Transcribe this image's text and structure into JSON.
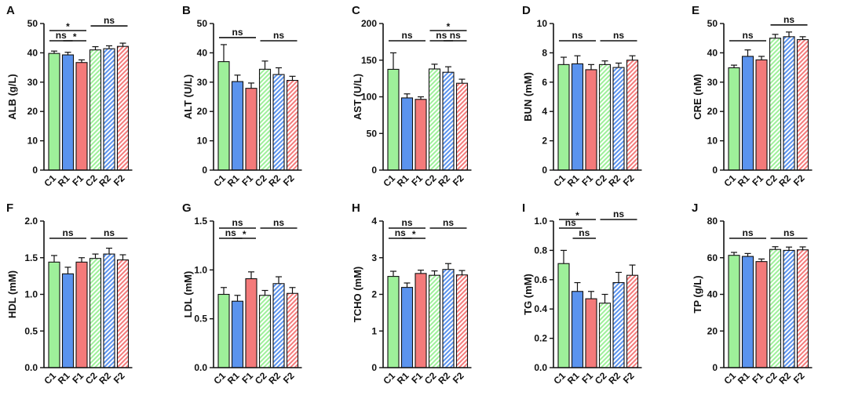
{
  "figure": {
    "colors": {
      "green": "#9EF09A",
      "blue": "#5B93EE",
      "red": "#F47A7A",
      "axis": "#111111"
    },
    "panels": [
      {
        "letter": "A",
        "ylabel": "ALB (g/L)",
        "yticks": [
          "0",
          "10",
          "20",
          "30",
          "40",
          "50"
        ]
      },
      {
        "letter": "B",
        "ylabel": "ALT (U/L)",
        "yticks": [
          "0",
          "10",
          "20",
          "30",
          "40",
          "50"
        ]
      },
      {
        "letter": "C",
        "ylabel": "AST (U/L)",
        "yticks": [
          "0",
          "50",
          "100",
          "150",
          "200"
        ]
      },
      {
        "letter": "D",
        "ylabel": "BUN (mM)",
        "yticks": [
          "0",
          "2",
          "4",
          "6",
          "8",
          "10"
        ]
      },
      {
        "letter": "E",
        "ylabel": "CRE (nM)",
        "yticks": [
          "0",
          "10",
          "20",
          "30",
          "40",
          "50"
        ]
      },
      {
        "letter": "F",
        "ylabel": "HDL (mM)",
        "yticks": [
          "0.0",
          "0.5",
          "1.0",
          "1.5",
          "2.0"
        ]
      },
      {
        "letter": "G",
        "ylabel": "LDL (mM)",
        "yticks": [
          "0.0",
          "0.5",
          "1.0",
          "1.5"
        ]
      },
      {
        "letter": "H",
        "ylabel": "TCHO (mM)",
        "yticks": [
          "0",
          "1",
          "2",
          "3",
          "4"
        ]
      },
      {
        "letter": "I",
        "ylabel": "TG (mM)",
        "yticks": [
          "0.0",
          "0.2",
          "0.4",
          "0.6",
          "0.8",
          "1.0"
        ]
      },
      {
        "letter": "J",
        "ylabel": "TP (g/L)",
        "yticks": [
          "0",
          "20",
          "40",
          "60",
          "80"
        ]
      }
    ]
  },
  "chart_data": [
    {
      "type": "bar",
      "panel": "A",
      "ylabel": "ALB (g/L)",
      "ylim": [
        0,
        50
      ],
      "categories": [
        "C1",
        "R1",
        "F1",
        "C2",
        "R2",
        "F2"
      ],
      "values": [
        39.8,
        39.3,
        36.7,
        41.0,
        41.4,
        42.2
      ],
      "errors": [
        0.8,
        0.9,
        0.9,
        1.1,
        1.0,
        1.1
      ],
      "comparisons": [
        {
          "from": 0,
          "to": 1,
          "label": "ns",
          "level": 0
        },
        {
          "from": 1,
          "to": 2,
          "label": "*",
          "level": 0
        },
        {
          "from": 0,
          "to": 2,
          "label": "*",
          "level": 1
        },
        {
          "from": 3,
          "to": 5,
          "label": "ns",
          "level": 1
        }
      ]
    },
    {
      "type": "bar",
      "panel": "B",
      "ylabel": "ALT (U/L)",
      "ylim": [
        0,
        50
      ],
      "categories": [
        "C1",
        "R1",
        "F1",
        "C2",
        "R2",
        "F2"
      ],
      "values": [
        37.0,
        30.2,
        27.9,
        34.4,
        32.6,
        30.6
      ],
      "errors": [
        5.8,
        2.2,
        1.8,
        2.8,
        2.3,
        1.4
      ],
      "comparisons": [
        {
          "from": 0,
          "to": 2,
          "label": "ns",
          "level": 0
        },
        {
          "from": 3,
          "to": 5,
          "label": "ns",
          "level": 0
        }
      ]
    },
    {
      "type": "bar",
      "panel": "C",
      "ylabel": "AST (U/L)",
      "ylim": [
        0,
        200
      ],
      "categories": [
        "C1",
        "R1",
        "F1",
        "C2",
        "R2",
        "F2"
      ],
      "values": [
        137.5,
        98.5,
        96.5,
        138.0,
        133.5,
        118.5
      ],
      "errors": [
        22.5,
        5.5,
        3.5,
        6.5,
        7.5,
        5.5
      ],
      "comparisons": [
        {
          "from": 0,
          "to": 2,
          "label": "ns",
          "level": 0
        },
        {
          "from": 3,
          "to": 4,
          "label": "ns",
          "level": 0
        },
        {
          "from": 4,
          "to": 5,
          "label": "ns",
          "level": 0
        },
        {
          "from": 3,
          "to": 5,
          "label": "*",
          "level": 1
        }
      ]
    },
    {
      "type": "bar",
      "panel": "D",
      "ylabel": "BUN (mM)",
      "ylim": [
        0,
        10
      ],
      "categories": [
        "C1",
        "R1",
        "F1",
        "C2",
        "R2",
        "F2"
      ],
      "values": [
        7.2,
        7.25,
        6.85,
        7.2,
        7.0,
        7.5
      ],
      "errors": [
        0.5,
        0.55,
        0.35,
        0.25,
        0.3,
        0.3
      ],
      "comparisons": [
        {
          "from": 0,
          "to": 2,
          "label": "ns",
          "level": 0
        },
        {
          "from": 3,
          "to": 5,
          "label": "ns",
          "level": 0
        }
      ]
    },
    {
      "type": "bar",
      "panel": "E",
      "ylabel": "CRE (nM)",
      "ylim": [
        0,
        50
      ],
      "categories": [
        "C1",
        "R1",
        "F1",
        "C2",
        "R2",
        "F2"
      ],
      "values": [
        34.9,
        38.8,
        37.6,
        45.0,
        45.5,
        44.5
      ],
      "errors": [
        0.9,
        2.2,
        1.2,
        1.3,
        1.6,
        1.0
      ],
      "comparisons": [
        {
          "from": 0,
          "to": 2,
          "label": "ns",
          "level": 0
        },
        {
          "from": 3,
          "to": 5,
          "label": "ns",
          "level": 0
        }
      ]
    },
    {
      "type": "bar",
      "panel": "F",
      "ylabel": "HDL (mM)",
      "ylim": [
        0,
        2.0
      ],
      "categories": [
        "C1",
        "R1",
        "F1",
        "C2",
        "R2",
        "F2"
      ],
      "values": [
        1.44,
        1.28,
        1.44,
        1.49,
        1.55,
        1.47
      ],
      "errors": [
        0.09,
        0.09,
        0.06,
        0.06,
        0.08,
        0.07
      ],
      "comparisons": [
        {
          "from": 0,
          "to": 2,
          "label": "ns",
          "level": 0
        },
        {
          "from": 3,
          "to": 5,
          "label": "ns",
          "level": 0
        }
      ]
    },
    {
      "type": "bar",
      "panel": "G",
      "ylabel": "LDL (mM)",
      "ylim": [
        0,
        1.5
      ],
      "categories": [
        "C1",
        "R1",
        "F1",
        "C2",
        "R2",
        "F2"
      ],
      "values": [
        0.75,
        0.68,
        0.91,
        0.74,
        0.86,
        0.76
      ],
      "errors": [
        0.07,
        0.06,
        0.07,
        0.05,
        0.07,
        0.06
      ],
      "comparisons": [
        {
          "from": 0,
          "to": 1,
          "label": "ns",
          "level": 0
        },
        {
          "from": 1,
          "to": 2,
          "label": "*",
          "level": 0
        },
        {
          "from": 0,
          "to": 2,
          "label": "ns",
          "level": 1
        },
        {
          "from": 3,
          "to": 5,
          "label": "ns",
          "level": 1
        }
      ]
    },
    {
      "type": "bar",
      "panel": "H",
      "ylabel": "TCHO (mM)",
      "ylim": [
        0,
        4
      ],
      "categories": [
        "C1",
        "R1",
        "F1",
        "C2",
        "R2",
        "F2"
      ],
      "values": [
        2.49,
        2.19,
        2.57,
        2.52,
        2.68,
        2.53
      ],
      "errors": [
        0.14,
        0.12,
        0.09,
        0.12,
        0.16,
        0.12
      ],
      "comparisons": [
        {
          "from": 0,
          "to": 1,
          "label": "ns",
          "level": 0
        },
        {
          "from": 1,
          "to": 2,
          "label": "*",
          "level": 0
        },
        {
          "from": 0,
          "to": 2,
          "label": "ns",
          "level": 1
        },
        {
          "from": 3,
          "to": 5,
          "label": "ns",
          "level": 1
        }
      ]
    },
    {
      "type": "bar",
      "panel": "I",
      "ylabel": "TG (mM)",
      "ylim": [
        0,
        1.0
      ],
      "categories": [
        "C1",
        "R1",
        "F1",
        "C2",
        "R2",
        "F2"
      ],
      "values": [
        0.71,
        0.52,
        0.47,
        0.44,
        0.58,
        0.63
      ],
      "errors": [
        0.09,
        0.06,
        0.05,
        0.06,
        0.07,
        0.07
      ],
      "comparisons": [
        {
          "from": 0,
          "to": 1,
          "label": "ns",
          "level": 1
        },
        {
          "from": 1,
          "to": 2,
          "label": "ns",
          "level": 0
        },
        {
          "from": 0,
          "to": 2,
          "label": "*",
          "level": 2
        },
        {
          "from": 3,
          "to": 5,
          "label": "ns",
          "level": 2
        }
      ]
    },
    {
      "type": "bar",
      "panel": "J",
      "ylabel": "TP (g/L)",
      "ylim": [
        0,
        80
      ],
      "categories": [
        "C1",
        "R1",
        "F1",
        "C2",
        "R2",
        "F2"
      ],
      "values": [
        61.3,
        60.7,
        57.9,
        64.5,
        64.0,
        64.3
      ],
      "errors": [
        1.6,
        1.6,
        1.4,
        1.5,
        1.8,
        1.6
      ],
      "comparisons": [
        {
          "from": 0,
          "to": 2,
          "label": "ns",
          "level": 0
        },
        {
          "from": 3,
          "to": 5,
          "label": "ns",
          "level": 0
        }
      ]
    }
  ]
}
